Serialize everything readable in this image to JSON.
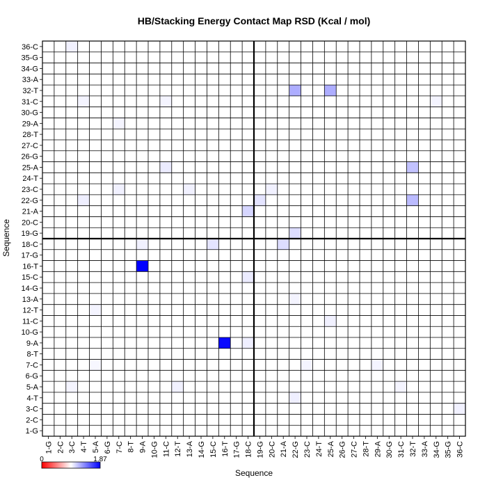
{
  "chart_data": {
    "type": "heatmap",
    "title": "HB/Stacking Energy Contact Map RSD (Kcal / mol)",
    "xlabel": "Sequence",
    "ylabel": "Sequence",
    "labels": [
      "1-G",
      "2-C",
      "3-C",
      "4-T",
      "5-A",
      "6-G",
      "7-C",
      "8-T",
      "9-A",
      "10-G",
      "11-C",
      "12-T",
      "13-A",
      "14-G",
      "15-C",
      "16-T",
      "17-G",
      "18-C",
      "19-G",
      "20-C",
      "21-A",
      "22-G",
      "23-C",
      "24-T",
      "25-A",
      "26-G",
      "27-C",
      "28-T",
      "29-A",
      "30-G",
      "31-C",
      "32-T",
      "33-A",
      "34-G",
      "35-G",
      "36-C"
    ],
    "colorbar": {
      "min_label": "0",
      "max_label": "1.87",
      "min": 0,
      "max": 1.87,
      "colors": [
        "#ff0000",
        "#ffffff",
        "#0000ff"
      ]
    },
    "divider_after_index": 18,
    "grid": true,
    "cells": [
      {
        "x": "3-C",
        "y": "36-C",
        "value": 0.1
      },
      {
        "x": "22-G",
        "y": "32-T",
        "value": 0.6
      },
      {
        "x": "25-A",
        "y": "32-T",
        "value": 0.6
      },
      {
        "x": "4-T",
        "y": "31-C",
        "value": 0.08
      },
      {
        "x": "11-C",
        "y": "31-C",
        "value": 0.08
      },
      {
        "x": "34-G",
        "y": "31-C",
        "value": 0.08
      },
      {
        "x": "7-C",
        "y": "29-A",
        "value": 0.08
      },
      {
        "x": "11-C",
        "y": "25-A",
        "value": 0.15
      },
      {
        "x": "32-T",
        "y": "25-A",
        "value": 0.45
      },
      {
        "x": "7-C",
        "y": "23-C",
        "value": 0.1
      },
      {
        "x": "13-A",
        "y": "23-C",
        "value": 0.1
      },
      {
        "x": "20-C",
        "y": "23-C",
        "value": 0.1
      },
      {
        "x": "4-T",
        "y": "22-G",
        "value": 0.12
      },
      {
        "x": "19-G",
        "y": "22-G",
        "value": 0.2
      },
      {
        "x": "32-T",
        "y": "22-G",
        "value": 0.5
      },
      {
        "x": "18-C",
        "y": "21-A",
        "value": 0.3
      },
      {
        "x": "22-G",
        "y": "19-G",
        "value": 0.25
      },
      {
        "x": "9-A",
        "y": "18-C",
        "value": 0.1
      },
      {
        "x": "15-C",
        "y": "18-C",
        "value": 0.2
      },
      {
        "x": "21-A",
        "y": "18-C",
        "value": 0.25
      },
      {
        "x": "9-A",
        "y": "16-T",
        "value": 1.87
      },
      {
        "x": "18-C",
        "y": "15-C",
        "value": 0.15
      },
      {
        "x": "5-A",
        "y": "12-T",
        "value": 0.08
      },
      {
        "x": "22-G",
        "y": "13-A",
        "value": 0.08
      },
      {
        "x": "25-A",
        "y": "11-C",
        "value": 0.1
      },
      {
        "x": "16-T",
        "y": "9-A",
        "value": 1.8
      },
      {
        "x": "18-C",
        "y": "9-A",
        "value": 0.12
      },
      {
        "x": "5-A",
        "y": "7-C",
        "value": 0.06
      },
      {
        "x": "23-C",
        "y": "7-C",
        "value": 0.08
      },
      {
        "x": "29-A",
        "y": "7-C",
        "value": 0.08
      },
      {
        "x": "3-C",
        "y": "5-A",
        "value": 0.08
      },
      {
        "x": "12-T",
        "y": "5-A",
        "value": 0.1
      },
      {
        "x": "31-C",
        "y": "5-A",
        "value": 0.08
      },
      {
        "x": "22-G",
        "y": "4-T",
        "value": 0.12
      },
      {
        "x": "36-C",
        "y": "3-C",
        "value": 0.1
      }
    ]
  }
}
